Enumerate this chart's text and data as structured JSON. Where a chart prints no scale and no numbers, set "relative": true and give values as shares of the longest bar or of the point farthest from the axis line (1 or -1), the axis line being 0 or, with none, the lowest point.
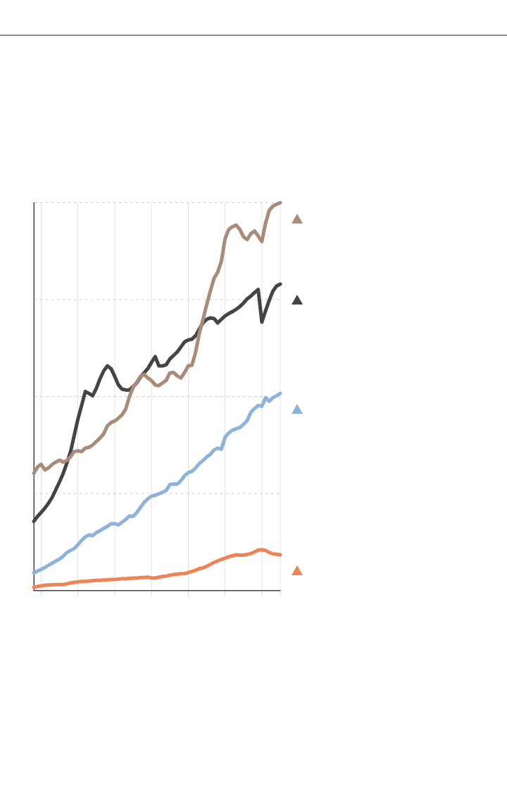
{
  "chart_data": {
    "type": "line",
    "relative": true,
    "tick_labels": false,
    "grid": true,
    "marker": "none",
    "line_style": "solid",
    "categories": [
      null,
      null,
      null,
      null,
      null,
      null,
      null,
      null,
      null,
      null,
      null,
      null,
      null,
      null,
      null,
      null,
      null,
      null,
      null,
      null,
      null,
      null,
      null,
      null,
      null,
      null,
      null,
      null,
      null,
      null,
      null,
      null,
      null,
      null,
      null,
      null,
      null,
      null,
      null,
      null,
      null,
      null,
      null,
      null,
      null,
      null,
      null,
      null,
      null,
      null,
      null,
      null,
      null,
      null,
      null,
      null,
      null,
      null,
      null,
      null,
      null,
      null,
      null,
      null,
      null,
      null,
      null,
      null
    ],
    "series": [
      {
        "color": "#a88b78",
        "values": [
          0.302,
          0.318,
          0.325,
          0.311,
          0.316,
          0.325,
          0.331,
          0.336,
          0.331,
          0.335,
          0.345,
          0.358,
          0.36,
          0.358,
          0.367,
          0.369,
          0.375,
          0.384,
          0.393,
          0.404,
          0.424,
          0.433,
          0.437,
          0.444,
          0.453,
          0.468,
          0.5,
          0.524,
          0.537,
          0.552,
          0.557,
          0.548,
          0.541,
          0.53,
          0.528,
          0.535,
          0.542,
          0.561,
          0.562,
          0.553,
          0.548,
          0.562,
          0.579,
          0.581,
          0.615,
          0.663,
          0.699,
          0.737,
          0.772,
          0.805,
          0.821,
          0.849,
          0.907,
          0.931,
          0.938,
          0.942,
          0.931,
          0.912,
          0.905,
          0.92,
          0.927,
          0.914,
          0.9,
          0.947,
          0.98,
          0.991,
          0.996,
          1
        ]
      },
      {
        "color": "#444444",
        "values": [
          0.178,
          0.191,
          0.201,
          0.212,
          0.225,
          0.24,
          0.26,
          0.28,
          0.302,
          0.329,
          0.358,
          0.4,
          0.442,
          0.477,
          0.513,
          0.508,
          0.502,
          0.521,
          0.546,
          0.566,
          0.579,
          0.572,
          0.552,
          0.53,
          0.519,
          0.517,
          0.517,
          0.526,
          0.535,
          0.55,
          0.561,
          0.572,
          0.588,
          0.603,
          0.579,
          0.579,
          0.582,
          0.597,
          0.606,
          0.615,
          0.628,
          0.641,
          0.646,
          0.648,
          0.657,
          0.674,
          0.69,
          0.699,
          0.703,
          0.701,
          0.69,
          0.699,
          0.708,
          0.714,
          0.719,
          0.725,
          0.732,
          0.741,
          0.752,
          0.759,
          0.768,
          0.776,
          0.692,
          0.721,
          0.748,
          0.772,
          0.785,
          0.79
        ]
      },
      {
        "color": "#8db3da",
        "values": [
          0.045,
          0.05,
          0.054,
          0.059,
          0.065,
          0.07,
          0.076,
          0.081,
          0.088,
          0.098,
          0.103,
          0.108,
          0.118,
          0.129,
          0.138,
          0.143,
          0.141,
          0.149,
          0.154,
          0.16,
          0.165,
          0.172,
          0.172,
          0.169,
          0.176,
          0.183,
          0.192,
          0.191,
          0.201,
          0.214,
          0.227,
          0.236,
          0.243,
          0.245,
          0.249,
          0.253,
          0.258,
          0.273,
          0.274,
          0.274,
          0.283,
          0.296,
          0.304,
          0.307,
          0.316,
          0.327,
          0.335,
          0.344,
          0.351,
          0.362,
          0.367,
          0.364,
          0.395,
          0.406,
          0.413,
          0.417,
          0.42,
          0.428,
          0.438,
          0.459,
          0.469,
          0.477,
          0.475,
          0.497,
          0.488,
          0.497,
          0.502,
          0.508
        ]
      },
      {
        "color": "#ec8456",
        "values": [
          0.008,
          0.01,
          0.012,
          0.013,
          0.014,
          0.014,
          0.015,
          0.015,
          0.015,
          0.017,
          0.019,
          0.021,
          0.022,
          0.023,
          0.023,
          0.024,
          0.025,
          0.026,
          0.026,
          0.027,
          0.027,
          0.028,
          0.028,
          0.029,
          0.03,
          0.03,
          0.031,
          0.032,
          0.032,
          0.033,
          0.033,
          0.034,
          0.032,
          0.032,
          0.034,
          0.036,
          0.037,
          0.039,
          0.041,
          0.042,
          0.043,
          0.043,
          0.046,
          0.049,
          0.052,
          0.056,
          0.058,
          0.062,
          0.067,
          0.072,
          0.076,
          0.08,
          0.083,
          0.087,
          0.089,
          0.092,
          0.091,
          0.091,
          0.093,
          0.095,
          0.099,
          0.104,
          0.105,
          0.103,
          0.098,
          0.094,
          0.093,
          0.092
        ]
      }
    ]
  }
}
